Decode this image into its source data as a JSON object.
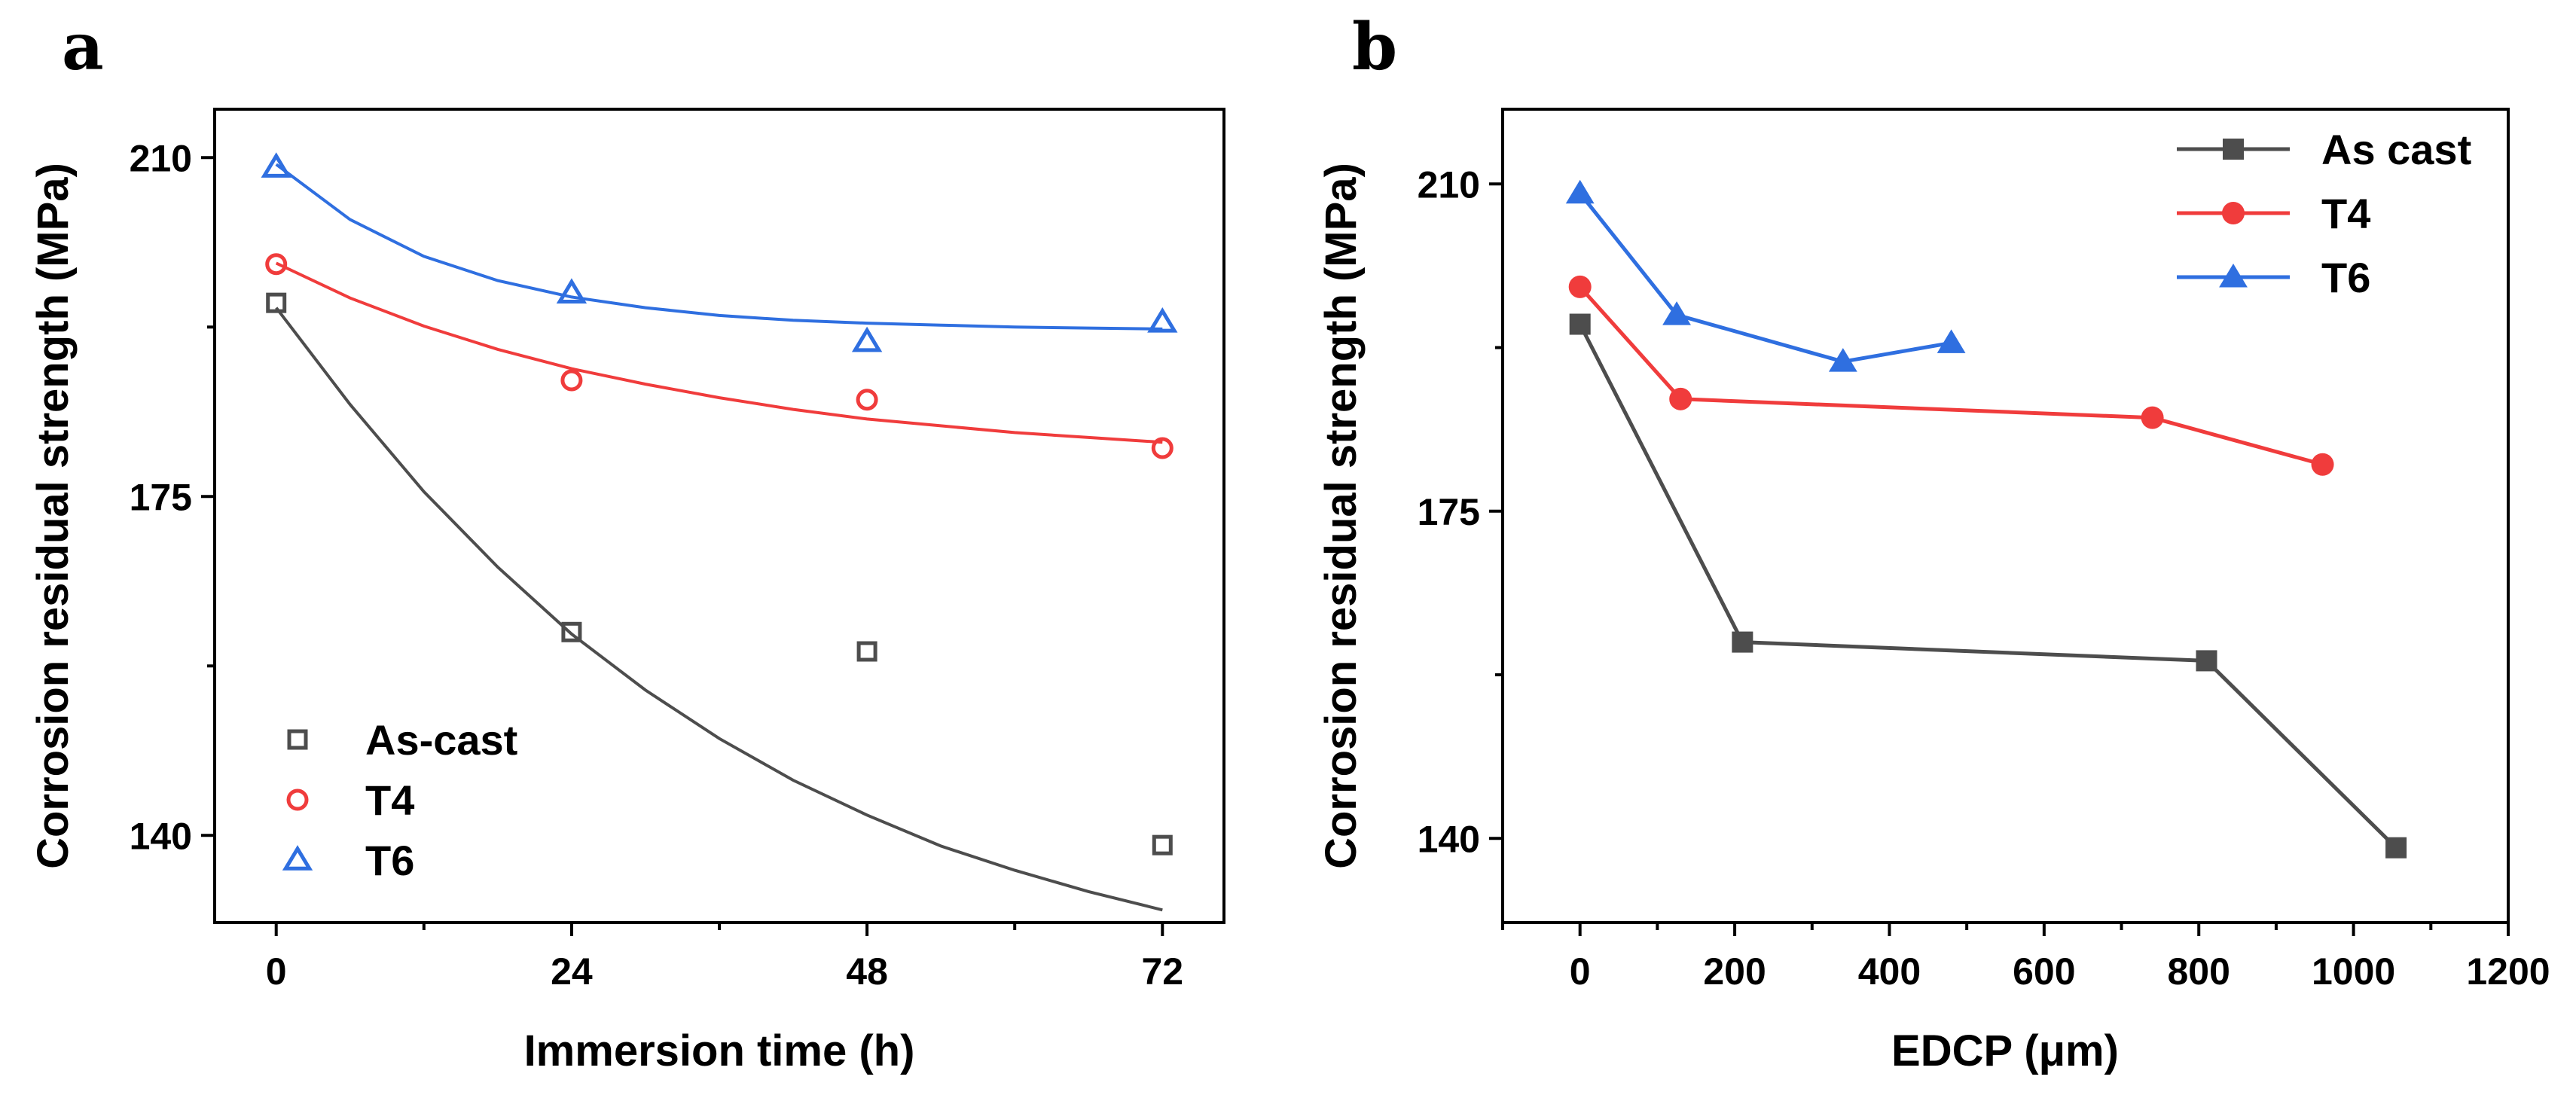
{
  "colors": {
    "as_cast": "#4d4d4d",
    "t4": "#f03c3c",
    "t6": "#2f6fe0"
  },
  "chart_data": [
    {
      "panel": "a",
      "type": "scatter",
      "xlabel": "Immersion time (h)",
      "ylabel": "Corrosion residual strength (MPa)",
      "xlim": [
        -5,
        77
      ],
      "ylim": [
        131,
        215
      ],
      "xticks": [
        0,
        24,
        48,
        72
      ],
      "yticks": [
        140,
        175,
        210
      ],
      "grid": false,
      "legend": "bottom-left",
      "series": [
        {
          "name": "As-cast",
          "marker": "open-square",
          "color": "#4d4d4d",
          "x": [
            0,
            24,
            48,
            72
          ],
          "y": [
            195,
            161,
            159,
            139
          ],
          "fit": [
            [
              0,
              194.5
            ],
            [
              6,
              184.5
            ],
            [
              12,
              175.5
            ],
            [
              18,
              167.7
            ],
            [
              24,
              160.8
            ],
            [
              30,
              155.0
            ],
            [
              36,
              150.0
            ],
            [
              42,
              145.7
            ],
            [
              48,
              142.1
            ],
            [
              54,
              138.9
            ],
            [
              60,
              136.4
            ],
            [
              66,
              134.2
            ],
            [
              72,
              132.3
            ]
          ]
        },
        {
          "name": "T4",
          "marker": "open-circle",
          "color": "#f03c3c",
          "x": [
            0,
            24,
            48,
            72
          ],
          "y": [
            199,
            187,
            185,
            180
          ],
          "fit": [
            [
              0,
              199.1
            ],
            [
              6,
              195.5
            ],
            [
              12,
              192.6
            ],
            [
              18,
              190.2
            ],
            [
              24,
              188.2
            ],
            [
              30,
              186.6
            ],
            [
              36,
              185.2
            ],
            [
              42,
              184.0
            ],
            [
              48,
              183.0
            ],
            [
              54,
              182.3
            ],
            [
              60,
              181.6
            ],
            [
              66,
              181.1
            ],
            [
              72,
              180.6
            ]
          ]
        },
        {
          "name": "T6",
          "marker": "open-triangle",
          "color": "#2f6fe0",
          "x": [
            0,
            24,
            48,
            72
          ],
          "y": [
            209,
            196,
            191,
            193
          ],
          "fit": [
            [
              0,
              209.3
            ],
            [
              6,
              203.6
            ],
            [
              12,
              199.8
            ],
            [
              18,
              197.3
            ],
            [
              24,
              195.6
            ],
            [
              30,
              194.5
            ],
            [
              36,
              193.7
            ],
            [
              42,
              193.2
            ],
            [
              48,
              192.9
            ],
            [
              54,
              192.7
            ],
            [
              60,
              192.5
            ],
            [
              66,
              192.4
            ],
            [
              72,
              192.3
            ]
          ]
        }
      ]
    },
    {
      "panel": "b",
      "type": "line",
      "xlabel": "EDCP (μm)",
      "ylabel": "Corrosion residual strength (MPa)",
      "xlim": [
        -100,
        1200
      ],
      "ylim": [
        131,
        218
      ],
      "xticks": [
        0,
        200,
        400,
        600,
        800,
        1000,
        1200
      ],
      "yticks": [
        140,
        175,
        210
      ],
      "grid": false,
      "legend": "top-right",
      "series": [
        {
          "name": "As cast",
          "marker": "filled-square",
          "color": "#4d4d4d",
          "x": [
            0,
            210,
            810,
            1055
          ],
          "y": [
            195,
            161,
            159,
            139
          ]
        },
        {
          "name": "T4",
          "marker": "filled-circle",
          "color": "#f03c3c",
          "x": [
            0,
            130,
            740,
            960
          ],
          "y": [
            199,
            187,
            185,
            180
          ]
        },
        {
          "name": "T6",
          "marker": "filled-triangle",
          "color": "#2f6fe0",
          "x": [
            0,
            125,
            340,
            480
          ],
          "y": [
            209,
            196,
            191,
            193
          ]
        }
      ]
    }
  ]
}
